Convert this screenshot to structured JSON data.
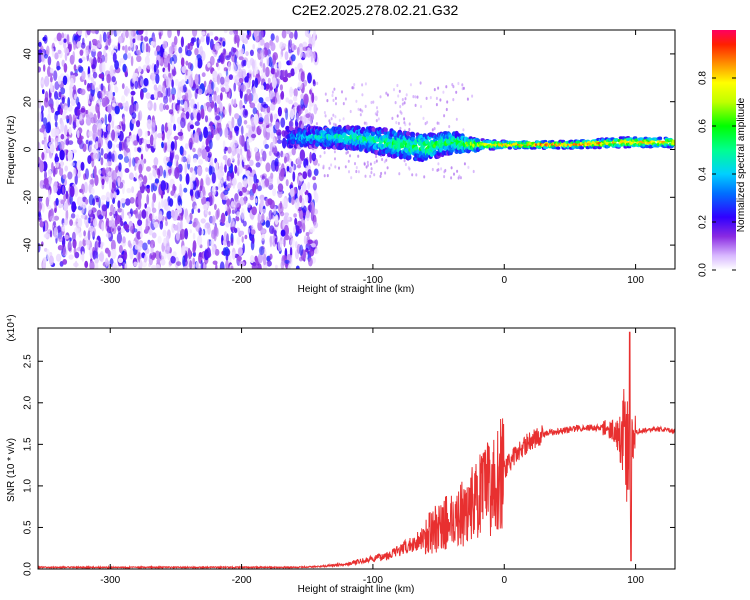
{
  "title": "C2E2.2025.278.02.21.G32",
  "colors": {
    "frame": "#000000",
    "snr_line": "#e83030",
    "colormap": [
      "#ffffff",
      "#e0c8ff",
      "#9a40ff",
      "#6a00ff",
      "#0000ff",
      "#00aaff",
      "#00ffaa",
      "#00ff00",
      "#aaff00",
      "#ffff00",
      "#ff8000",
      "#ff0000"
    ]
  },
  "chart_data": [
    {
      "type": "heatmap",
      "xlabel": "Height of straight line (km)",
      "ylabel": "Frequency (Hz)",
      "xlim": [
        -355,
        130
      ],
      "ylim": [
        -50,
        50
      ],
      "xticks": [
        -300,
        -200,
        -100,
        0,
        100
      ],
      "yticks": [
        -40,
        -20,
        0,
        20,
        40
      ],
      "colorbar": {
        "label": "Normalized spectral amplitude",
        "range": [
          0,
          1
        ],
        "ticks": [
          "0.0",
          "0.2",
          "0.4",
          "0.6",
          "0.8"
        ]
      },
      "signal_track": [
        {
          "x": -160,
          "freq": 5,
          "width": 8,
          "amp": 0.35
        },
        {
          "x": -140,
          "freq": 5,
          "width": 8,
          "amp": 0.45
        },
        {
          "x": -120,
          "freq": 5,
          "width": 9,
          "amp": 0.5
        },
        {
          "x": -100,
          "freq": 4,
          "width": 10,
          "amp": 0.5
        },
        {
          "x": -80,
          "freq": 2,
          "width": 11,
          "amp": 0.55
        },
        {
          "x": -60,
          "freq": 1,
          "width": 11,
          "amp": 0.6
        },
        {
          "x": -40,
          "freq": 3,
          "width": 9,
          "amp": 0.55
        },
        {
          "x": -25,
          "freq": 2,
          "width": 5,
          "amp": 0.7
        },
        {
          "x": 0,
          "freq": 2,
          "width": 3,
          "amp": 0.9
        },
        {
          "x": 50,
          "freq": 2,
          "width": 3,
          "amp": 0.95
        },
        {
          "x": 90,
          "freq": 3,
          "width": 4,
          "amp": 0.9
        },
        {
          "x": 125,
          "freq": 3,
          "width": 4,
          "amp": 0.85
        }
      ]
    },
    {
      "type": "line",
      "xlabel": "Height of straight line (km)",
      "ylabel": "SNR (10 * v/v)",
      "multiplier": "(x10⁴)",
      "xlim": [
        -355,
        130
      ],
      "ylim": [
        0,
        2.9
      ],
      "xticks": [
        -300,
        -200,
        -100,
        0,
        100
      ],
      "yticks": [
        "0.0",
        "0.5",
        "1.0",
        "1.5",
        "2.0",
        "2.5"
      ],
      "series": [
        {
          "x": [
            -355,
            -300,
            -250,
            -200,
            -160,
            -140,
            -120,
            -110,
            -100,
            -90,
            -80,
            -70,
            -60,
            -50,
            -40,
            -30,
            -25,
            -20,
            -10,
            0,
            10,
            20,
            30,
            40,
            50,
            60,
            70,
            80,
            85,
            90,
            95,
            100,
            110,
            120,
            130
          ],
          "y": [
            0.02,
            0.02,
            0.02,
            0.02,
            0.02,
            0.03,
            0.06,
            0.09,
            0.12,
            0.16,
            0.22,
            0.3,
            0.4,
            0.5,
            0.6,
            0.68,
            0.78,
            0.85,
            1.0,
            1.2,
            1.4,
            1.55,
            1.62,
            1.66,
            1.68,
            1.7,
            1.7,
            1.69,
            1.65,
            1.6,
            1.4,
            1.65,
            1.68,
            1.68,
            1.66
          ]
        }
      ]
    }
  ]
}
